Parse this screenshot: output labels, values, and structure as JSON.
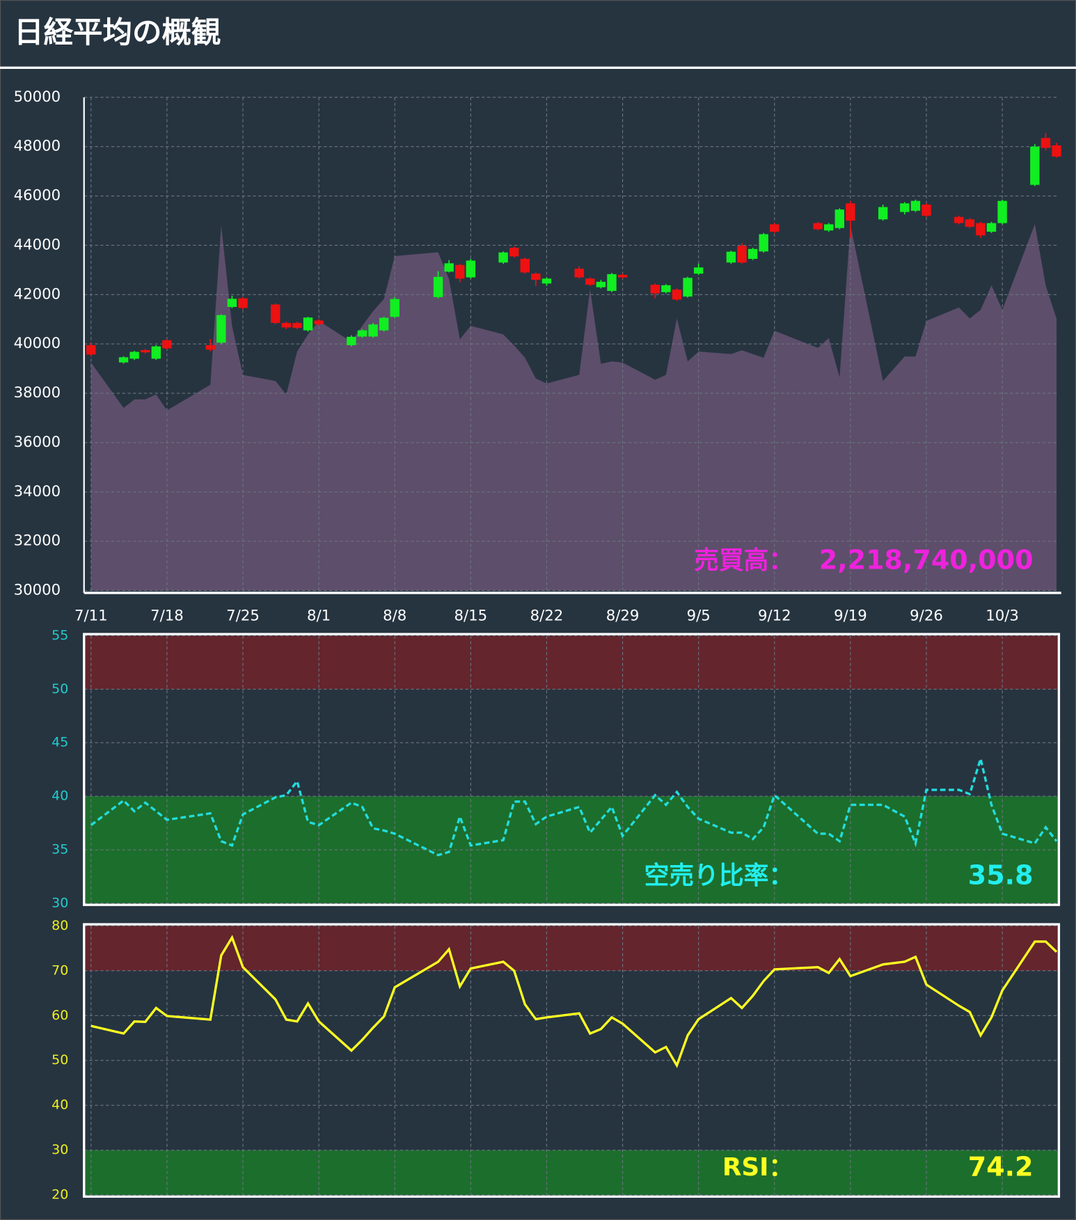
{
  "header": {
    "title": "日経平均の概観"
  },
  "chart_data": [
    {
      "type": "candlestick",
      "x": [
        "7/11",
        "7/14",
        "7/15",
        "7/16",
        "7/17",
        "7/18",
        "7/22",
        "7/23",
        "7/24",
        "7/25",
        "7/28",
        "7/29",
        "7/30",
        "7/31",
        "8/1",
        "8/4",
        "8/5",
        "8/6",
        "8/7",
        "8/8",
        "8/12",
        "8/13",
        "8/14",
        "8/15",
        "8/18",
        "8/19",
        "8/20",
        "8/21",
        "8/22",
        "8/25",
        "8/26",
        "8/27",
        "8/28",
        "8/29",
        "9/1",
        "9/2",
        "9/3",
        "9/4",
        "9/5",
        "9/8",
        "9/9",
        "9/10",
        "9/11",
        "9/12",
        "9/16",
        "9/17",
        "9/18",
        "9/19",
        "9/22",
        "9/24",
        "9/25",
        "9/26",
        "9/29",
        "9/30",
        "10/1",
        "10/2",
        "10/3",
        "10/6",
        "10/7",
        "10/8"
      ],
      "open": [
        39950,
        39250,
        39400,
        39750,
        39400,
        40150,
        39950,
        40050,
        41500,
        41850,
        41600,
        40850,
        40850,
        40550,
        40950,
        39950,
        40300,
        40300,
        40550,
        41100,
        41900,
        42930,
        43200,
        42700,
        43300,
        43900,
        43450,
        42850,
        42450,
        43050,
        42650,
        42300,
        42150,
        42800,
        42400,
        42100,
        42200,
        41920,
        42850,
        43300,
        43980,
        43450,
        43750,
        44850,
        44900,
        44600,
        44700,
        45700,
        45050,
        45350,
        45400,
        45650,
        45150,
        45050,
        44900,
        44550,
        44900,
        46450,
        48350,
        48050
      ],
      "high": [
        40050,
        39500,
        39720,
        39800,
        39950,
        40200,
        40200,
        41200,
        41950,
        41900,
        41650,
        40900,
        40900,
        41100,
        41000,
        40350,
        40600,
        40850,
        41100,
        41900,
        42950,
        43400,
        43250,
        43450,
        43750,
        43950,
        43500,
        42900,
        42700,
        43150,
        42700,
        42600,
        42880,
        42850,
        42450,
        42420,
        42250,
        42720,
        43250,
        43780,
        44100,
        43900,
        44500,
        44900,
        44950,
        44900,
        45500,
        45800,
        45650,
        45750,
        45850,
        45700,
        45200,
        45100,
        44950,
        44950,
        45850,
        48100,
        48550,
        48150
      ],
      "low": [
        39500,
        39200,
        39350,
        39600,
        39350,
        39780,
        39700,
        40000,
        41450,
        41400,
        40800,
        40600,
        40600,
        40500,
        40750,
        39900,
        40250,
        40250,
        40500,
        41050,
        41850,
        42900,
        42500,
        42650,
        43250,
        43500,
        42850,
        42350,
        42350,
        42650,
        42350,
        42250,
        42100,
        42650,
        41850,
        42050,
        41750,
        41880,
        42800,
        43250,
        43250,
        43400,
        43700,
        44500,
        44600,
        44550,
        44650,
        44300,
        45000,
        45250,
        45350,
        45150,
        44850,
        44700,
        44300,
        44500,
        44850,
        46400,
        47850,
        47550
      ],
      "close": [
        39570,
        39460,
        39680,
        39660,
        39900,
        39820,
        39770,
        41170,
        41830,
        41460,
        40850,
        40670,
        40650,
        41070,
        40800,
        40290,
        40550,
        40790,
        41060,
        41820,
        42720,
        43270,
        42650,
        43380,
        43710,
        43550,
        42900,
        42600,
        42650,
        42700,
        42400,
        42520,
        42830,
        42700,
        42050,
        42380,
        41800,
        42680,
        43100,
        43740,
        43300,
        43850,
        44450,
        44550,
        44650,
        44850,
        45450,
        45000,
        45550,
        45700,
        45800,
        45200,
        44900,
        44750,
        44400,
        44900,
        45800,
        48000,
        47950,
        47600
      ],
      "up_color": "#11ee22",
      "down_color": "#ee1111",
      "volume": {
        "color": "#5d4e6b",
        "values": [
          1860000000,
          1490000000,
          1560000000,
          1560000000,
          1600000000,
          1470000000,
          1680000000,
          2980000000,
          2160000000,
          1760000000,
          1710000000,
          1600000000,
          1950000000,
          2090000000,
          2200000000,
          2030000000,
          2160000000,
          2280000000,
          2380000000,
          2730000000,
          2760000000,
          2540000000,
          2050000000,
          2160000000,
          2090000000,
          2000000000,
          1900000000,
          1730000000,
          1690000000,
          1760000000,
          2460000000,
          1850000000,
          1870000000,
          1860000000,
          1720000000,
          1760000000,
          2220000000,
          1870000000,
          1950000000,
          1930000000,
          1960000000,
          1930000000,
          1900000000,
          2120000000,
          1980000000,
          2060000000,
          1740000000,
          2980000000,
          1710000000,
          1910000000,
          1910000000,
          2200000000,
          2310000000,
          2220000000,
          2290000000,
          2490000000,
          2290000000,
          2990000000,
          2490000000,
          2218740000
        ]
      },
      "annotation": {
        "label": "売買高：",
        "value": "2,218,740,000",
        "color": "#ee22dd"
      },
      "ylim": [
        30000,
        50000
      ],
      "yticks": [
        30000,
        32000,
        34000,
        36000,
        38000,
        40000,
        42000,
        44000,
        46000,
        48000,
        50000
      ],
      "xticks": [
        "7/11",
        "7/18",
        "7/25",
        "8/1",
        "8/8",
        "8/15",
        "8/22",
        "8/29",
        "9/5",
        "9/12",
        "9/19",
        "9/26",
        "10/3"
      ],
      "grid": true
    },
    {
      "type": "line",
      "color": "#22dddd",
      "dashed": true,
      "values": [
        37.3,
        39.6,
        38.6,
        39.4,
        38.6,
        37.8,
        38.4,
        35.8,
        35.4,
        38.3,
        39.9,
        40.1,
        41.4,
        37.6,
        37.3,
        39.4,
        39.0,
        37.0,
        36.8,
        36.5,
        34.5,
        34.8,
        38.1,
        35.4,
        35.9,
        39.5,
        39.5,
        37.4,
        38.1,
        39.0,
        36.6,
        37.8,
        39.0,
        36.3,
        40.1,
        39.2,
        40.4,
        39.0,
        37.9,
        36.6,
        36.6,
        36.0,
        37.1,
        40.1,
        36.5,
        36.5,
        35.8,
        39.2,
        39.2,
        38.1,
        35.6,
        40.6,
        40.6,
        40.2,
        43.5,
        39.2,
        36.5,
        35.6,
        37.1,
        35.8
      ],
      "bands": [
        {
          "from": 50,
          "to": 55,
          "color": "#64252d"
        },
        {
          "from": 30,
          "to": 40,
          "color": "#1c6e2c"
        }
      ],
      "annotation": {
        "label": "空売り比率：",
        "value": "35.8",
        "color": "#22eeee"
      },
      "tick_color": "#22cccc",
      "ylim": [
        30,
        55
      ],
      "yticks": [
        30,
        35,
        40,
        45,
        50,
        55
      ],
      "grid": true
    },
    {
      "type": "line",
      "color": "#ffff22",
      "dashed": false,
      "values": [
        57.7,
        56.0,
        58.7,
        58.6,
        61.7,
        59.9,
        59.1,
        73.4,
        77.4,
        70.8,
        63.6,
        59.1,
        58.7,
        62.7,
        58.7,
        52.2,
        54.6,
        57.3,
        59.8,
        66.3,
        72.0,
        74.8,
        66.5,
        70.5,
        72.0,
        70.0,
        62.5,
        59.2,
        59.6,
        60.5,
        56.0,
        57.0,
        59.6,
        58.2,
        51.8,
        53.0,
        48.9,
        55.6,
        59.2,
        63.9,
        61.7,
        64.4,
        67.7,
        70.3,
        70.8,
        69.5,
        72.6,
        68.8,
        71.4,
        72.0,
        73.1,
        66.9,
        62.2,
        60.8,
        55.6,
        59.6,
        65.6,
        76.5,
        76.5,
        74.2
      ],
      "bands": [
        {
          "from": 70,
          "to": 80,
          "color": "#64252d"
        },
        {
          "from": 20,
          "to": 30,
          "color": "#1c6e2c"
        }
      ],
      "annotation": {
        "label": "RSI：",
        "value": "74.2",
        "color": "#ffff22"
      },
      "tick_color": "#eeee22",
      "ylim": [
        20,
        80
      ],
      "yticks": [
        20,
        30,
        40,
        50,
        60,
        70,
        80
      ],
      "grid": true
    }
  ]
}
